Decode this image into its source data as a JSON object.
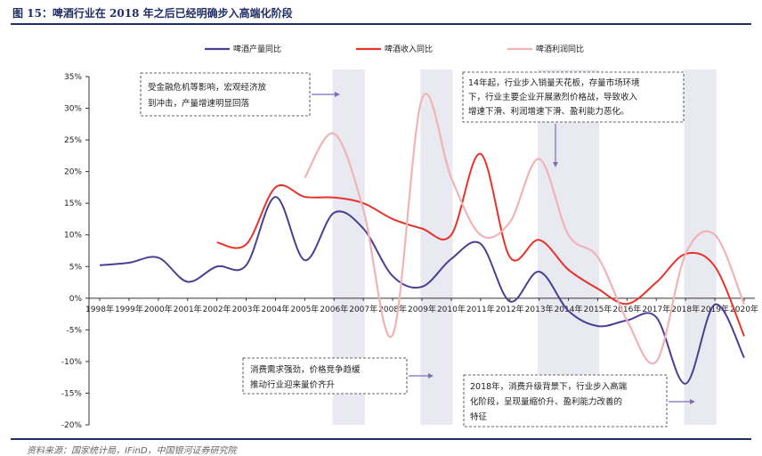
{
  "figure": {
    "title": "图 15：啤酒行业在 2018 年之后已经明确步入高端化阶段",
    "source": "资料来源：国家统计局，IFinD，中国银河证券研究院"
  },
  "chart_data": {
    "type": "line",
    "x": [
      "1998年",
      "1999年",
      "2000年",
      "2001年",
      "2002年",
      "2003年",
      "2004年",
      "2005年",
      "2006年",
      "2007年",
      "2008年",
      "2009年",
      "2010年",
      "2011年",
      "2012年",
      "2013年",
      "2014年",
      "2015年",
      "2016年",
      "2017年",
      "2018年",
      "2019年",
      "2020年"
    ],
    "ylim": [
      -20,
      35
    ],
    "yticks": [
      "-20%",
      "-15%",
      "-10%",
      "-5%",
      "0%",
      "5%",
      "10%",
      "15%",
      "20%",
      "25%",
      "30%",
      "35%"
    ],
    "grid": false,
    "legend": "top",
    "series": [
      {
        "name": "啤酒产量同比",
        "color": "#4b3f94",
        "values": [
          5.2,
          5.6,
          6.4,
          2.6,
          5.0,
          5.2,
          16.0,
          6.0,
          13.5,
          11.0,
          3.5,
          1.8,
          6.2,
          8.6,
          -0.5,
          4.2,
          -2.0,
          -4.4,
          -3.5,
          -3.0,
          -13.5,
          -1.0,
          -9.4
        ]
      },
      {
        "name": "啤酒收入同比",
        "color": "#e8332a",
        "values": [
          null,
          null,
          null,
          null,
          8.8,
          8.5,
          17.5,
          16.0,
          15.9,
          15.0,
          12.5,
          11.0,
          10.0,
          22.8,
          6.5,
          9.2,
          4.5,
          1.5,
          -0.9,
          2.5,
          7.0,
          5.0,
          -6.0
        ]
      },
      {
        "name": "啤酒利润同比",
        "color": "#f0b3b7",
        "values": [
          null,
          null,
          null,
          null,
          null,
          null,
          null,
          19.0,
          26.0,
          14.0,
          -5.8,
          31.5,
          19.0,
          10.0,
          12.0,
          22.0,
          10.0,
          6.5,
          -3.5,
          -10.0,
          7.0,
          10.0,
          -1.0
        ]
      }
    ],
    "shaded_year_ranges": [
      [
        "2006年",
        "2007年"
      ],
      [
        "2009年",
        "2010年"
      ],
      [
        "2013年",
        "2015年"
      ],
      [
        "2018年",
        "2019年"
      ]
    ]
  },
  "annotations": [
    {
      "lines": [
        "受金融危机等影响，宏观经济放",
        "到冲击，产量增速明显回落"
      ]
    },
    {
      "lines": [
        "14年起，行业步入销量天花板，存量市场环境",
        "下，行业主要企业开展激烈价格战，导致收入",
        "增速下滑、利润增速下滑、盈利能力恶化。"
      ]
    },
    {
      "lines": [
        "消费需求强劲，价格竞争趋缓",
        "推动行业迎来量价齐升"
      ]
    },
    {
      "lines": [
        "2018年，消费升级背景下，行业步入高端",
        "化阶段，呈现量缩价升、盈利能力改善的",
        "特征"
      ]
    }
  ]
}
